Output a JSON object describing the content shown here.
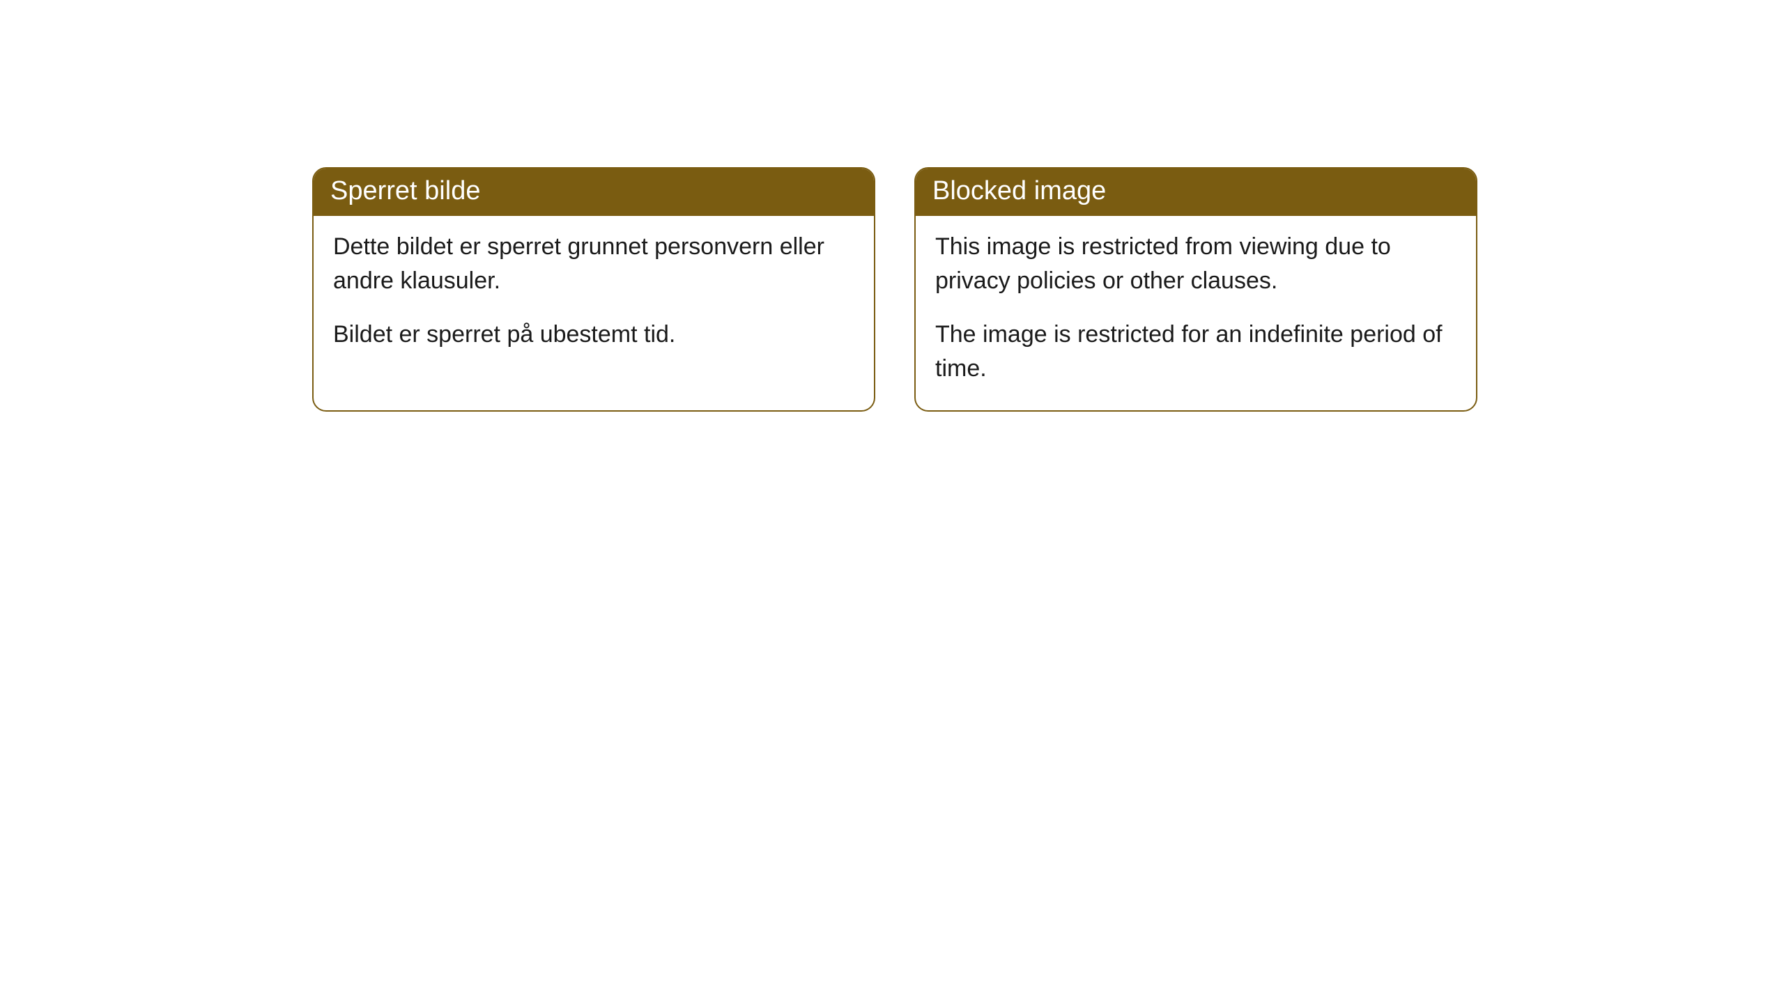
{
  "cards": [
    {
      "title": "Sperret bilde",
      "paragraph1": "Dette bildet er sperret grunnet personvern eller andre klausuler.",
      "paragraph2": "Bildet er sperret på ubestemt tid."
    },
    {
      "title": "Blocked image",
      "paragraph1": "This image is restricted from viewing due to privacy policies or other clauses.",
      "paragraph2": "The image is restricted for an indefinite period of time."
    }
  ],
  "styling": {
    "header_bg_color": "#7a5c11",
    "header_text_color": "#ffffff",
    "border_color": "#7a5c11",
    "body_text_color": "#1a1a1a",
    "card_bg_color": "#ffffff",
    "page_bg_color": "#ffffff",
    "border_radius": 20,
    "header_fontsize": 38,
    "body_fontsize": 34
  }
}
